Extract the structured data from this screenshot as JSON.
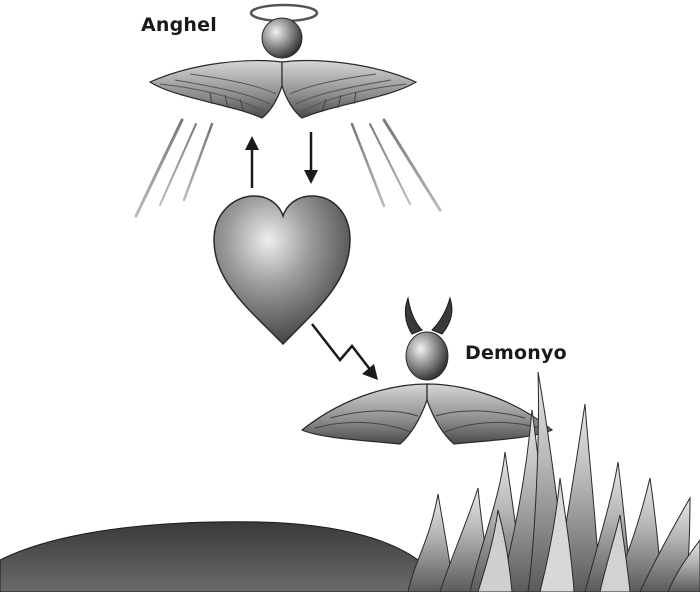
{
  "labels": {
    "angel": "Anghel",
    "demon": "Demonyo"
  },
  "figures": {
    "angel": {
      "parts": [
        "halo",
        "head",
        "wings"
      ]
    },
    "demon": {
      "parts": [
        "horns",
        "head",
        "wings"
      ]
    },
    "center": "heart-icon"
  },
  "arrows": [
    {
      "name": "heart-to-angel-arrow",
      "direction": "up"
    },
    {
      "name": "angel-to-heart-arrow",
      "direction": "down"
    },
    {
      "name": "heart-to-demon-zigzag-arrow",
      "direction": "down-right"
    }
  ],
  "colors": {
    "ink": "#1a1a1a",
    "figure_dark": "#3a3a3a",
    "figure_mid": "#8a8a8a",
    "figure_light": "#e0e0e0",
    "background": "#ffffff"
  }
}
